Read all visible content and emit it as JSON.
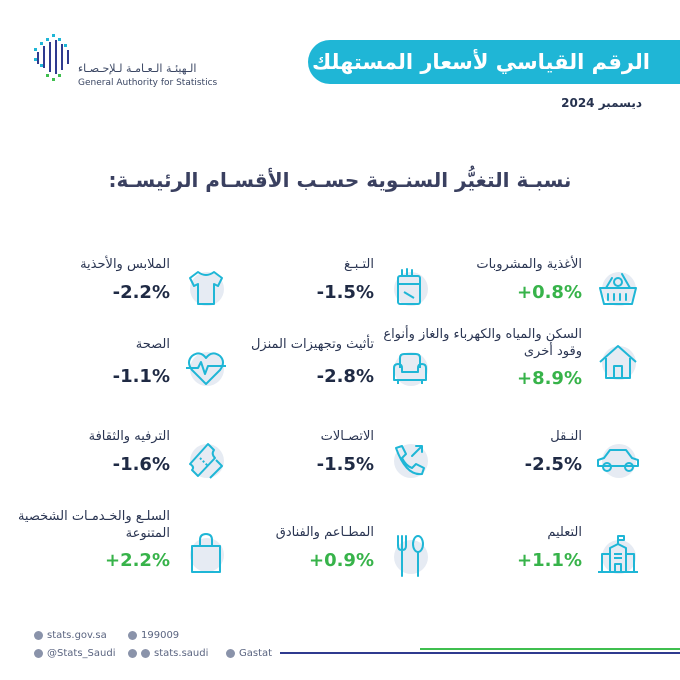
{
  "header": {
    "title": "الرقم القياسي لأسعار المستهلك",
    "date": "ديسمبر 2024",
    "subtitle": "نسبـة التغيُّر السنـوية حسـب الأقسـام الرئيسـة:"
  },
  "logo": {
    "arabic": "الـهيئـة الـعـامـة لـلإحـصـاء",
    "english": "General Authority for Statistics"
  },
  "colors": {
    "banner": "#1fb6d6",
    "positive": "#37b34a",
    "negative": "#1f2a44"
  },
  "categories": [
    {
      "label": "الأغذية والمشروبات",
      "value": "+0.8%",
      "icon": "food-basket-icon"
    },
    {
      "label": "التـبـغ",
      "value": "-1.5%",
      "icon": "cigarette-pack-icon"
    },
    {
      "label": "الملابس والأحذية",
      "value": "-2.2%",
      "icon": "tshirt-icon"
    },
    {
      "label": "السكن والمياه والكهرباء والغاز وأنواع وقود أخرى",
      "value": "+8.9%",
      "icon": "house-icon"
    },
    {
      "label": "تأثيث وتجهيزات المنزل",
      "value": "-2.8%",
      "icon": "armchair-icon"
    },
    {
      "label": "الصحة",
      "value": "-1.1%",
      "icon": "heart-pulse-icon"
    },
    {
      "label": "النـقل",
      "value": "-2.5%",
      "icon": "car-icon"
    },
    {
      "label": "الاتصـالات",
      "value": "-1.5%",
      "icon": "phone-call-icon"
    },
    {
      "label": "الترفيه والثقافة",
      "value": "-1.6%",
      "icon": "ticket-icon"
    },
    {
      "label": "التعليم",
      "value": "+1.1%",
      "icon": "school-icon"
    },
    {
      "label": "المطـاعم والفنادق",
      "value": "+0.9%",
      "icon": "cutlery-icon"
    },
    {
      "label": "السلـع والخـدمـات الشخصية المتنوعة",
      "value": "+2.2%",
      "icon": "shopping-bag-icon"
    }
  ],
  "footer": {
    "website": "stats.gov.sa",
    "phone": "199009",
    "twitter": "@Stats_Saudi",
    "instagram": "stats.saudi",
    "linkedin": "Gastat"
  }
}
